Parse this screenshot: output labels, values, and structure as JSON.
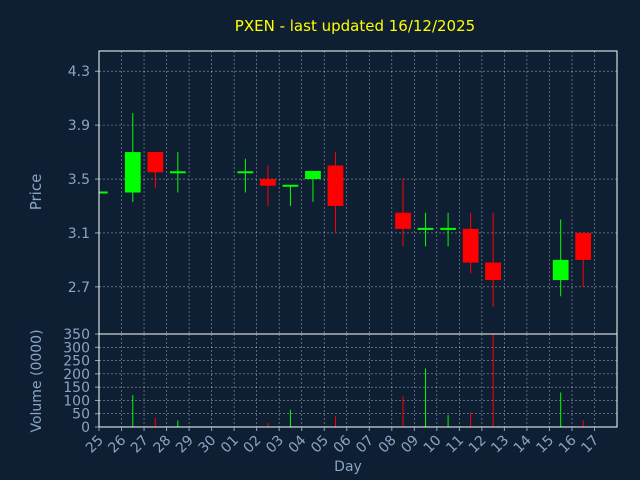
{
  "title": "PXEN - last updated 16/12/2025",
  "colors": {
    "background": "#0f1f33",
    "plot_border": "#ffffff",
    "grid": "#ffffff",
    "title": "#ffff00",
    "label": "#8aa4c4",
    "up": "#00ff00",
    "down": "#ff0000"
  },
  "chart_data": {
    "type": "candlestick",
    "title": "PXEN - last updated 16/12/2025",
    "xlabel": "Day",
    "grid": true,
    "days": [
      "25",
      "26",
      "27",
      "28",
      "29",
      "30",
      "01",
      "02",
      "03",
      "04",
      "05",
      "06",
      "07",
      "08",
      "09",
      "10",
      "11",
      "12",
      "13",
      "14",
      "15",
      "16",
      "17"
    ],
    "price": {
      "ylabel": "Price",
      "ylim": [
        2.35,
        4.45
      ],
      "ticks": [
        "4.3",
        "3.9",
        "3.5",
        "3.1",
        "2.7"
      ],
      "tick_values": [
        4.3,
        3.9,
        3.5,
        3.1,
        2.7
      ],
      "candles": [
        {
          "day": "25",
          "open": 3.4,
          "high": 3.4,
          "low": 3.4,
          "close": 3.4
        },
        {
          "day": "26",
          "open": 3.4,
          "high": 3.99,
          "low": 3.33,
          "close": 3.7
        },
        {
          "day": "27",
          "open": 3.7,
          "high": 3.7,
          "low": 3.43,
          "close": 3.55
        },
        {
          "day": "28",
          "open": 3.55,
          "high": 3.7,
          "low": 3.4,
          "close": 3.55
        },
        {
          "day": "01",
          "open": 3.55,
          "high": 3.65,
          "low": 3.4,
          "close": 3.55
        },
        {
          "day": "02",
          "open": 3.5,
          "high": 3.6,
          "low": 3.3,
          "close": 3.45
        },
        {
          "day": "03",
          "open": 3.45,
          "high": 3.45,
          "low": 3.3,
          "close": 3.45
        },
        {
          "day": "04",
          "open": 3.5,
          "high": 3.56,
          "low": 3.33,
          "close": 3.56
        },
        {
          "day": "05",
          "open": 3.6,
          "high": 3.7,
          "low": 3.1,
          "close": 3.3
        },
        {
          "day": "08",
          "open": 3.25,
          "high": 3.5,
          "low": 3.0,
          "close": 3.13
        },
        {
          "day": "09",
          "open": 3.13,
          "high": 3.25,
          "low": 3.0,
          "close": 3.13
        },
        {
          "day": "10",
          "open": 3.13,
          "high": 3.25,
          "low": 3.0,
          "close": 3.13
        },
        {
          "day": "11",
          "open": 3.13,
          "high": 3.25,
          "low": 2.8,
          "close": 2.88
        },
        {
          "day": "12",
          "open": 2.88,
          "high": 3.25,
          "low": 2.55,
          "close": 2.75
        },
        {
          "day": "15",
          "open": 2.75,
          "high": 3.2,
          "low": 2.63,
          "close": 2.9
        },
        {
          "day": "16",
          "open": 3.1,
          "high": 3.1,
          "low": 2.7,
          "close": 2.9
        }
      ]
    },
    "volume": {
      "ylabel": "Volume (0000)",
      "ylim": [
        0,
        350
      ],
      "ticks": [
        "350",
        "300",
        "250",
        "200",
        "150",
        "100",
        "50",
        "0"
      ],
      "tick_values": [
        350,
        300,
        250,
        200,
        150,
        100,
        50,
        0
      ],
      "bars": [
        {
          "day": "26",
          "value": 120,
          "dir": "up"
        },
        {
          "day": "27",
          "value": 35,
          "dir": "down"
        },
        {
          "day": "28",
          "value": 25,
          "dir": "up"
        },
        {
          "day": "02",
          "value": 15,
          "dir": "down"
        },
        {
          "day": "03",
          "value": 65,
          "dir": "up"
        },
        {
          "day": "05",
          "value": 40,
          "dir": "down"
        },
        {
          "day": "08",
          "value": 115,
          "dir": "down"
        },
        {
          "day": "09",
          "value": 220,
          "dir": "up"
        },
        {
          "day": "10",
          "value": 45,
          "dir": "up"
        },
        {
          "day": "11",
          "value": 55,
          "dir": "down"
        },
        {
          "day": "12",
          "value": 350,
          "dir": "down"
        },
        {
          "day": "15",
          "value": 130,
          "dir": "up"
        },
        {
          "day": "16",
          "value": 25,
          "dir": "down"
        }
      ]
    }
  }
}
